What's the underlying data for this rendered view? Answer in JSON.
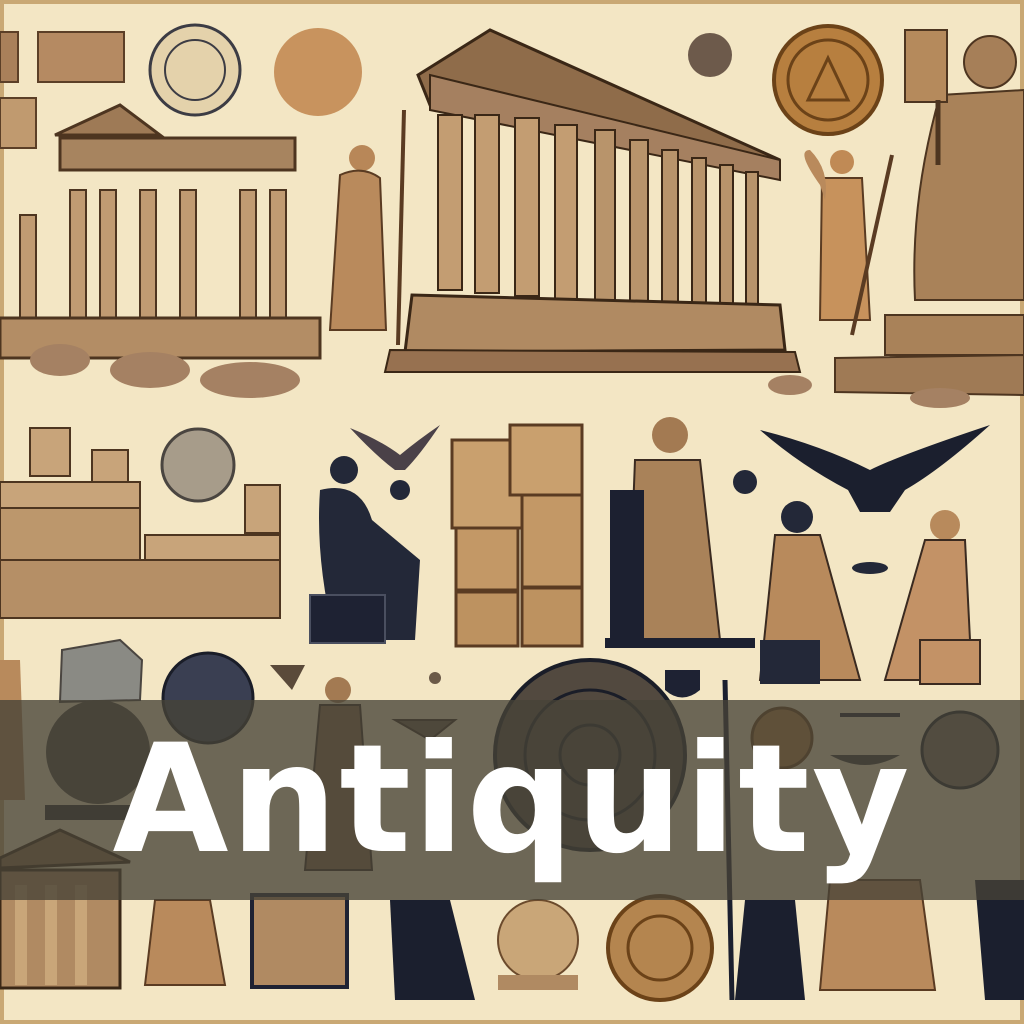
{
  "title": "Antiquity",
  "colors": {
    "parchment": "#f3e6c4",
    "ink": "#1e2233",
    "stone": "#b8936a",
    "stone_dark": "#6e5236",
    "band": "#46423799",
    "title_text": "#ffffff"
  },
  "illustrations": [
    "ruined-temple",
    "greek-temple",
    "goddess-with-staff",
    "winged-figure",
    "seated-bearded-god",
    "stone-tablets",
    "eagle-silhouette",
    "philosopher",
    "coins",
    "balance-scale",
    "small-temple",
    "ram-statue"
  ]
}
